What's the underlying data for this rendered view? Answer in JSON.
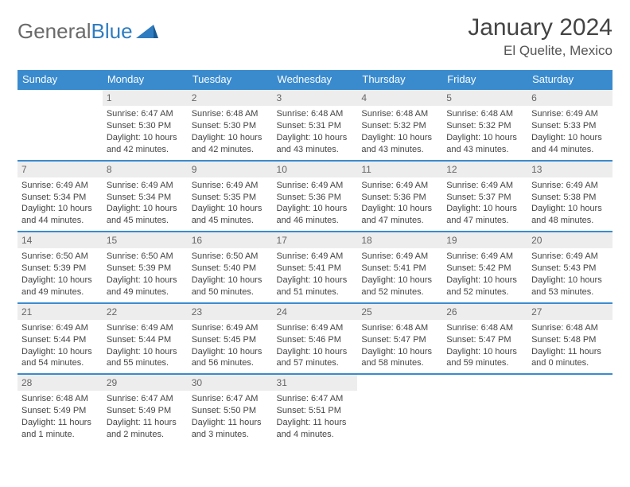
{
  "logo": {
    "general": "General",
    "blue": "Blue"
  },
  "title": "January 2024",
  "location": "El Quelite, Mexico",
  "colors": {
    "header_bg": "#3a8bce",
    "header_text": "#ffffff",
    "daynum_bg": "#ededed",
    "border": "#3a8bce",
    "logo_blue": "#2f7dc0",
    "text": "#3a3a3a",
    "background": "#ffffff"
  },
  "daynames": [
    "Sunday",
    "Monday",
    "Tuesday",
    "Wednesday",
    "Thursday",
    "Friday",
    "Saturday"
  ],
  "weeks": [
    [
      {
        "n": "",
        "sr": "",
        "ss": "",
        "dl": "",
        "empty": true
      },
      {
        "n": "1",
        "sr": "Sunrise: 6:47 AM",
        "ss": "Sunset: 5:30 PM",
        "dl": "Daylight: 10 hours and 42 minutes."
      },
      {
        "n": "2",
        "sr": "Sunrise: 6:48 AM",
        "ss": "Sunset: 5:30 PM",
        "dl": "Daylight: 10 hours and 42 minutes."
      },
      {
        "n": "3",
        "sr": "Sunrise: 6:48 AM",
        "ss": "Sunset: 5:31 PM",
        "dl": "Daylight: 10 hours and 43 minutes."
      },
      {
        "n": "4",
        "sr": "Sunrise: 6:48 AM",
        "ss": "Sunset: 5:32 PM",
        "dl": "Daylight: 10 hours and 43 minutes."
      },
      {
        "n": "5",
        "sr": "Sunrise: 6:48 AM",
        "ss": "Sunset: 5:32 PM",
        "dl": "Daylight: 10 hours and 43 minutes."
      },
      {
        "n": "6",
        "sr": "Sunrise: 6:49 AM",
        "ss": "Sunset: 5:33 PM",
        "dl": "Daylight: 10 hours and 44 minutes."
      }
    ],
    [
      {
        "n": "7",
        "sr": "Sunrise: 6:49 AM",
        "ss": "Sunset: 5:34 PM",
        "dl": "Daylight: 10 hours and 44 minutes."
      },
      {
        "n": "8",
        "sr": "Sunrise: 6:49 AM",
        "ss": "Sunset: 5:34 PM",
        "dl": "Daylight: 10 hours and 45 minutes."
      },
      {
        "n": "9",
        "sr": "Sunrise: 6:49 AM",
        "ss": "Sunset: 5:35 PM",
        "dl": "Daylight: 10 hours and 45 minutes."
      },
      {
        "n": "10",
        "sr": "Sunrise: 6:49 AM",
        "ss": "Sunset: 5:36 PM",
        "dl": "Daylight: 10 hours and 46 minutes."
      },
      {
        "n": "11",
        "sr": "Sunrise: 6:49 AM",
        "ss": "Sunset: 5:36 PM",
        "dl": "Daylight: 10 hours and 47 minutes."
      },
      {
        "n": "12",
        "sr": "Sunrise: 6:49 AM",
        "ss": "Sunset: 5:37 PM",
        "dl": "Daylight: 10 hours and 47 minutes."
      },
      {
        "n": "13",
        "sr": "Sunrise: 6:49 AM",
        "ss": "Sunset: 5:38 PM",
        "dl": "Daylight: 10 hours and 48 minutes."
      }
    ],
    [
      {
        "n": "14",
        "sr": "Sunrise: 6:50 AM",
        "ss": "Sunset: 5:39 PM",
        "dl": "Daylight: 10 hours and 49 minutes."
      },
      {
        "n": "15",
        "sr": "Sunrise: 6:50 AM",
        "ss": "Sunset: 5:39 PM",
        "dl": "Daylight: 10 hours and 49 minutes."
      },
      {
        "n": "16",
        "sr": "Sunrise: 6:50 AM",
        "ss": "Sunset: 5:40 PM",
        "dl": "Daylight: 10 hours and 50 minutes."
      },
      {
        "n": "17",
        "sr": "Sunrise: 6:49 AM",
        "ss": "Sunset: 5:41 PM",
        "dl": "Daylight: 10 hours and 51 minutes."
      },
      {
        "n": "18",
        "sr": "Sunrise: 6:49 AM",
        "ss": "Sunset: 5:41 PM",
        "dl": "Daylight: 10 hours and 52 minutes."
      },
      {
        "n": "19",
        "sr": "Sunrise: 6:49 AM",
        "ss": "Sunset: 5:42 PM",
        "dl": "Daylight: 10 hours and 52 minutes."
      },
      {
        "n": "20",
        "sr": "Sunrise: 6:49 AM",
        "ss": "Sunset: 5:43 PM",
        "dl": "Daylight: 10 hours and 53 minutes."
      }
    ],
    [
      {
        "n": "21",
        "sr": "Sunrise: 6:49 AM",
        "ss": "Sunset: 5:44 PM",
        "dl": "Daylight: 10 hours and 54 minutes."
      },
      {
        "n": "22",
        "sr": "Sunrise: 6:49 AM",
        "ss": "Sunset: 5:44 PM",
        "dl": "Daylight: 10 hours and 55 minutes."
      },
      {
        "n": "23",
        "sr": "Sunrise: 6:49 AM",
        "ss": "Sunset: 5:45 PM",
        "dl": "Daylight: 10 hours and 56 minutes."
      },
      {
        "n": "24",
        "sr": "Sunrise: 6:49 AM",
        "ss": "Sunset: 5:46 PM",
        "dl": "Daylight: 10 hours and 57 minutes."
      },
      {
        "n": "25",
        "sr": "Sunrise: 6:48 AM",
        "ss": "Sunset: 5:47 PM",
        "dl": "Daylight: 10 hours and 58 minutes."
      },
      {
        "n": "26",
        "sr": "Sunrise: 6:48 AM",
        "ss": "Sunset: 5:47 PM",
        "dl": "Daylight: 10 hours and 59 minutes."
      },
      {
        "n": "27",
        "sr": "Sunrise: 6:48 AM",
        "ss": "Sunset: 5:48 PM",
        "dl": "Daylight: 11 hours and 0 minutes."
      }
    ],
    [
      {
        "n": "28",
        "sr": "Sunrise: 6:48 AM",
        "ss": "Sunset: 5:49 PM",
        "dl": "Daylight: 11 hours and 1 minute."
      },
      {
        "n": "29",
        "sr": "Sunrise: 6:47 AM",
        "ss": "Sunset: 5:49 PM",
        "dl": "Daylight: 11 hours and 2 minutes."
      },
      {
        "n": "30",
        "sr": "Sunrise: 6:47 AM",
        "ss": "Sunset: 5:50 PM",
        "dl": "Daylight: 11 hours and 3 minutes."
      },
      {
        "n": "31",
        "sr": "Sunrise: 6:47 AM",
        "ss": "Sunset: 5:51 PM",
        "dl": "Daylight: 11 hours and 4 minutes."
      },
      {
        "n": "",
        "sr": "",
        "ss": "",
        "dl": "",
        "empty": true
      },
      {
        "n": "",
        "sr": "",
        "ss": "",
        "dl": "",
        "empty": true
      },
      {
        "n": "",
        "sr": "",
        "ss": "",
        "dl": "",
        "empty": true
      }
    ]
  ]
}
